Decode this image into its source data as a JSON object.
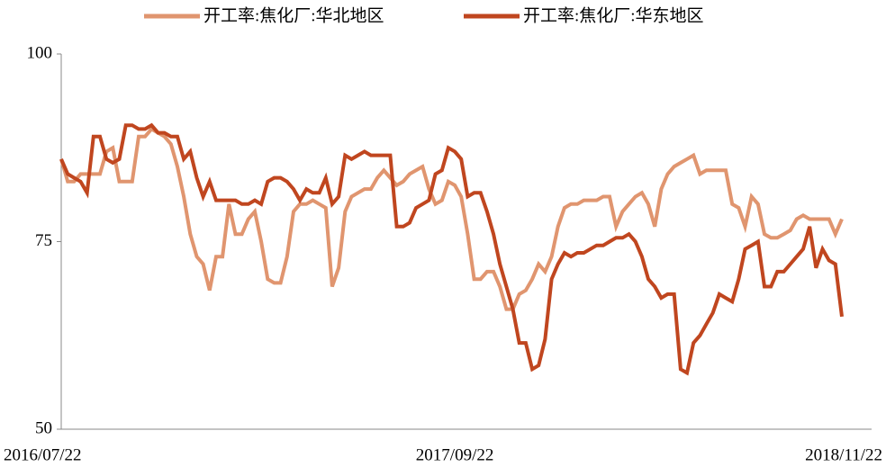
{
  "chart_data": {
    "type": "line",
    "categories": [
      "2016/07/22",
      null,
      null,
      null,
      null,
      null,
      null,
      null,
      null,
      null,
      null,
      null,
      null,
      null,
      null,
      null,
      null,
      null,
      null,
      null,
      null,
      null,
      null,
      null,
      null,
      null,
      null,
      null,
      null,
      null,
      null,
      null,
      null,
      null,
      null,
      null,
      null,
      null,
      null,
      null,
      null,
      null,
      null,
      null,
      null,
      null,
      null,
      null,
      null,
      null,
      null,
      null,
      null,
      null,
      null,
      null,
      null,
      null,
      null,
      null,
      null,
      "2017/09/22",
      null,
      null,
      null,
      null,
      null,
      null,
      null,
      null,
      null,
      null,
      null,
      null,
      null,
      null,
      null,
      null,
      null,
      null,
      null,
      null,
      null,
      null,
      null,
      null,
      null,
      null,
      null,
      null,
      null,
      null,
      null,
      null,
      null,
      null,
      null,
      null,
      null,
      null,
      null,
      null,
      null,
      null,
      null,
      null,
      null,
      null,
      null,
      null,
      null,
      null,
      null,
      null,
      null,
      null,
      null,
      null,
      null,
      null,
      null,
      "2018/11/22"
    ],
    "series": [
      {
        "name": "开工率:焦化厂:华北地区",
        "color": "#e0956f",
        "values": [
          86,
          83,
          83,
          84,
          84,
          84,
          84,
          87,
          87.5,
          83,
          83,
          83,
          89,
          89,
          90,
          89.5,
          89,
          88,
          85,
          81,
          76,
          73,
          72,
          68.5,
          73,
          73,
          80,
          76,
          76,
          78,
          79,
          75,
          70,
          69.5,
          69.5,
          73,
          79,
          80,
          80,
          80.5,
          80,
          79.5,
          69,
          71.5,
          79,
          81,
          81.5,
          82,
          82,
          83.5,
          84.5,
          83.5,
          82.5,
          83,
          84,
          84.5,
          85,
          82,
          80,
          80.5,
          83,
          82.5,
          81,
          76,
          70,
          70,
          71,
          71,
          69,
          66,
          66,
          68,
          68.5,
          70,
          72,
          71,
          73,
          77,
          79.5,
          80,
          80,
          80.5,
          80.5,
          80.5,
          81,
          81,
          77,
          79,
          80,
          81,
          81.5,
          80,
          77,
          82,
          84,
          85,
          85.5,
          86,
          86.5,
          84,
          84.5,
          84.5,
          84.5,
          84.5,
          80,
          79.5,
          77,
          81,
          80,
          76,
          75.5,
          75.5,
          76,
          76.5,
          78,
          78.5,
          78,
          78,
          78,
          78,
          76,
          78
        ]
      },
      {
        "name": "开工率:焦化厂:华东地区",
        "color": "#c0461f",
        "values": [
          86,
          84,
          83.5,
          83,
          81.5,
          89,
          89,
          86,
          85.5,
          86,
          90.5,
          90.5,
          90,
          90,
          90.5,
          89.5,
          89.5,
          89,
          89,
          86,
          87,
          83.5,
          81,
          83,
          80.5,
          80.5,
          80.5,
          80.5,
          80,
          80,
          80.5,
          80,
          83,
          83.5,
          83.5,
          83,
          82,
          80.5,
          82,
          81.5,
          81.5,
          83.5,
          80,
          81,
          86.5,
          86,
          86.5,
          87,
          86.5,
          86.5,
          86.5,
          86.5,
          77,
          77,
          77.5,
          79.5,
          80,
          80.5,
          84,
          84.5,
          87.5,
          87,
          86,
          81,
          81.5,
          81.5,
          79,
          76,
          72,
          69,
          66,
          61.5,
          61.5,
          58,
          58.5,
          62,
          70,
          72,
          73.5,
          73,
          73.5,
          73.5,
          74,
          74.5,
          74.5,
          75,
          75.5,
          75.5,
          76,
          75,
          73,
          70,
          69,
          67.5,
          68,
          68,
          58,
          57.5,
          61.5,
          62.5,
          64,
          65.5,
          68,
          67.5,
          67,
          70,
          74,
          74.5,
          75,
          69,
          69,
          71,
          71,
          72,
          73,
          74,
          77,
          71.5,
          74,
          72.5,
          72,
          65
        ]
      }
    ],
    "ylim": [
      50,
      100
    ],
    "yticks": [
      50,
      75,
      100
    ],
    "legend": "top"
  }
}
